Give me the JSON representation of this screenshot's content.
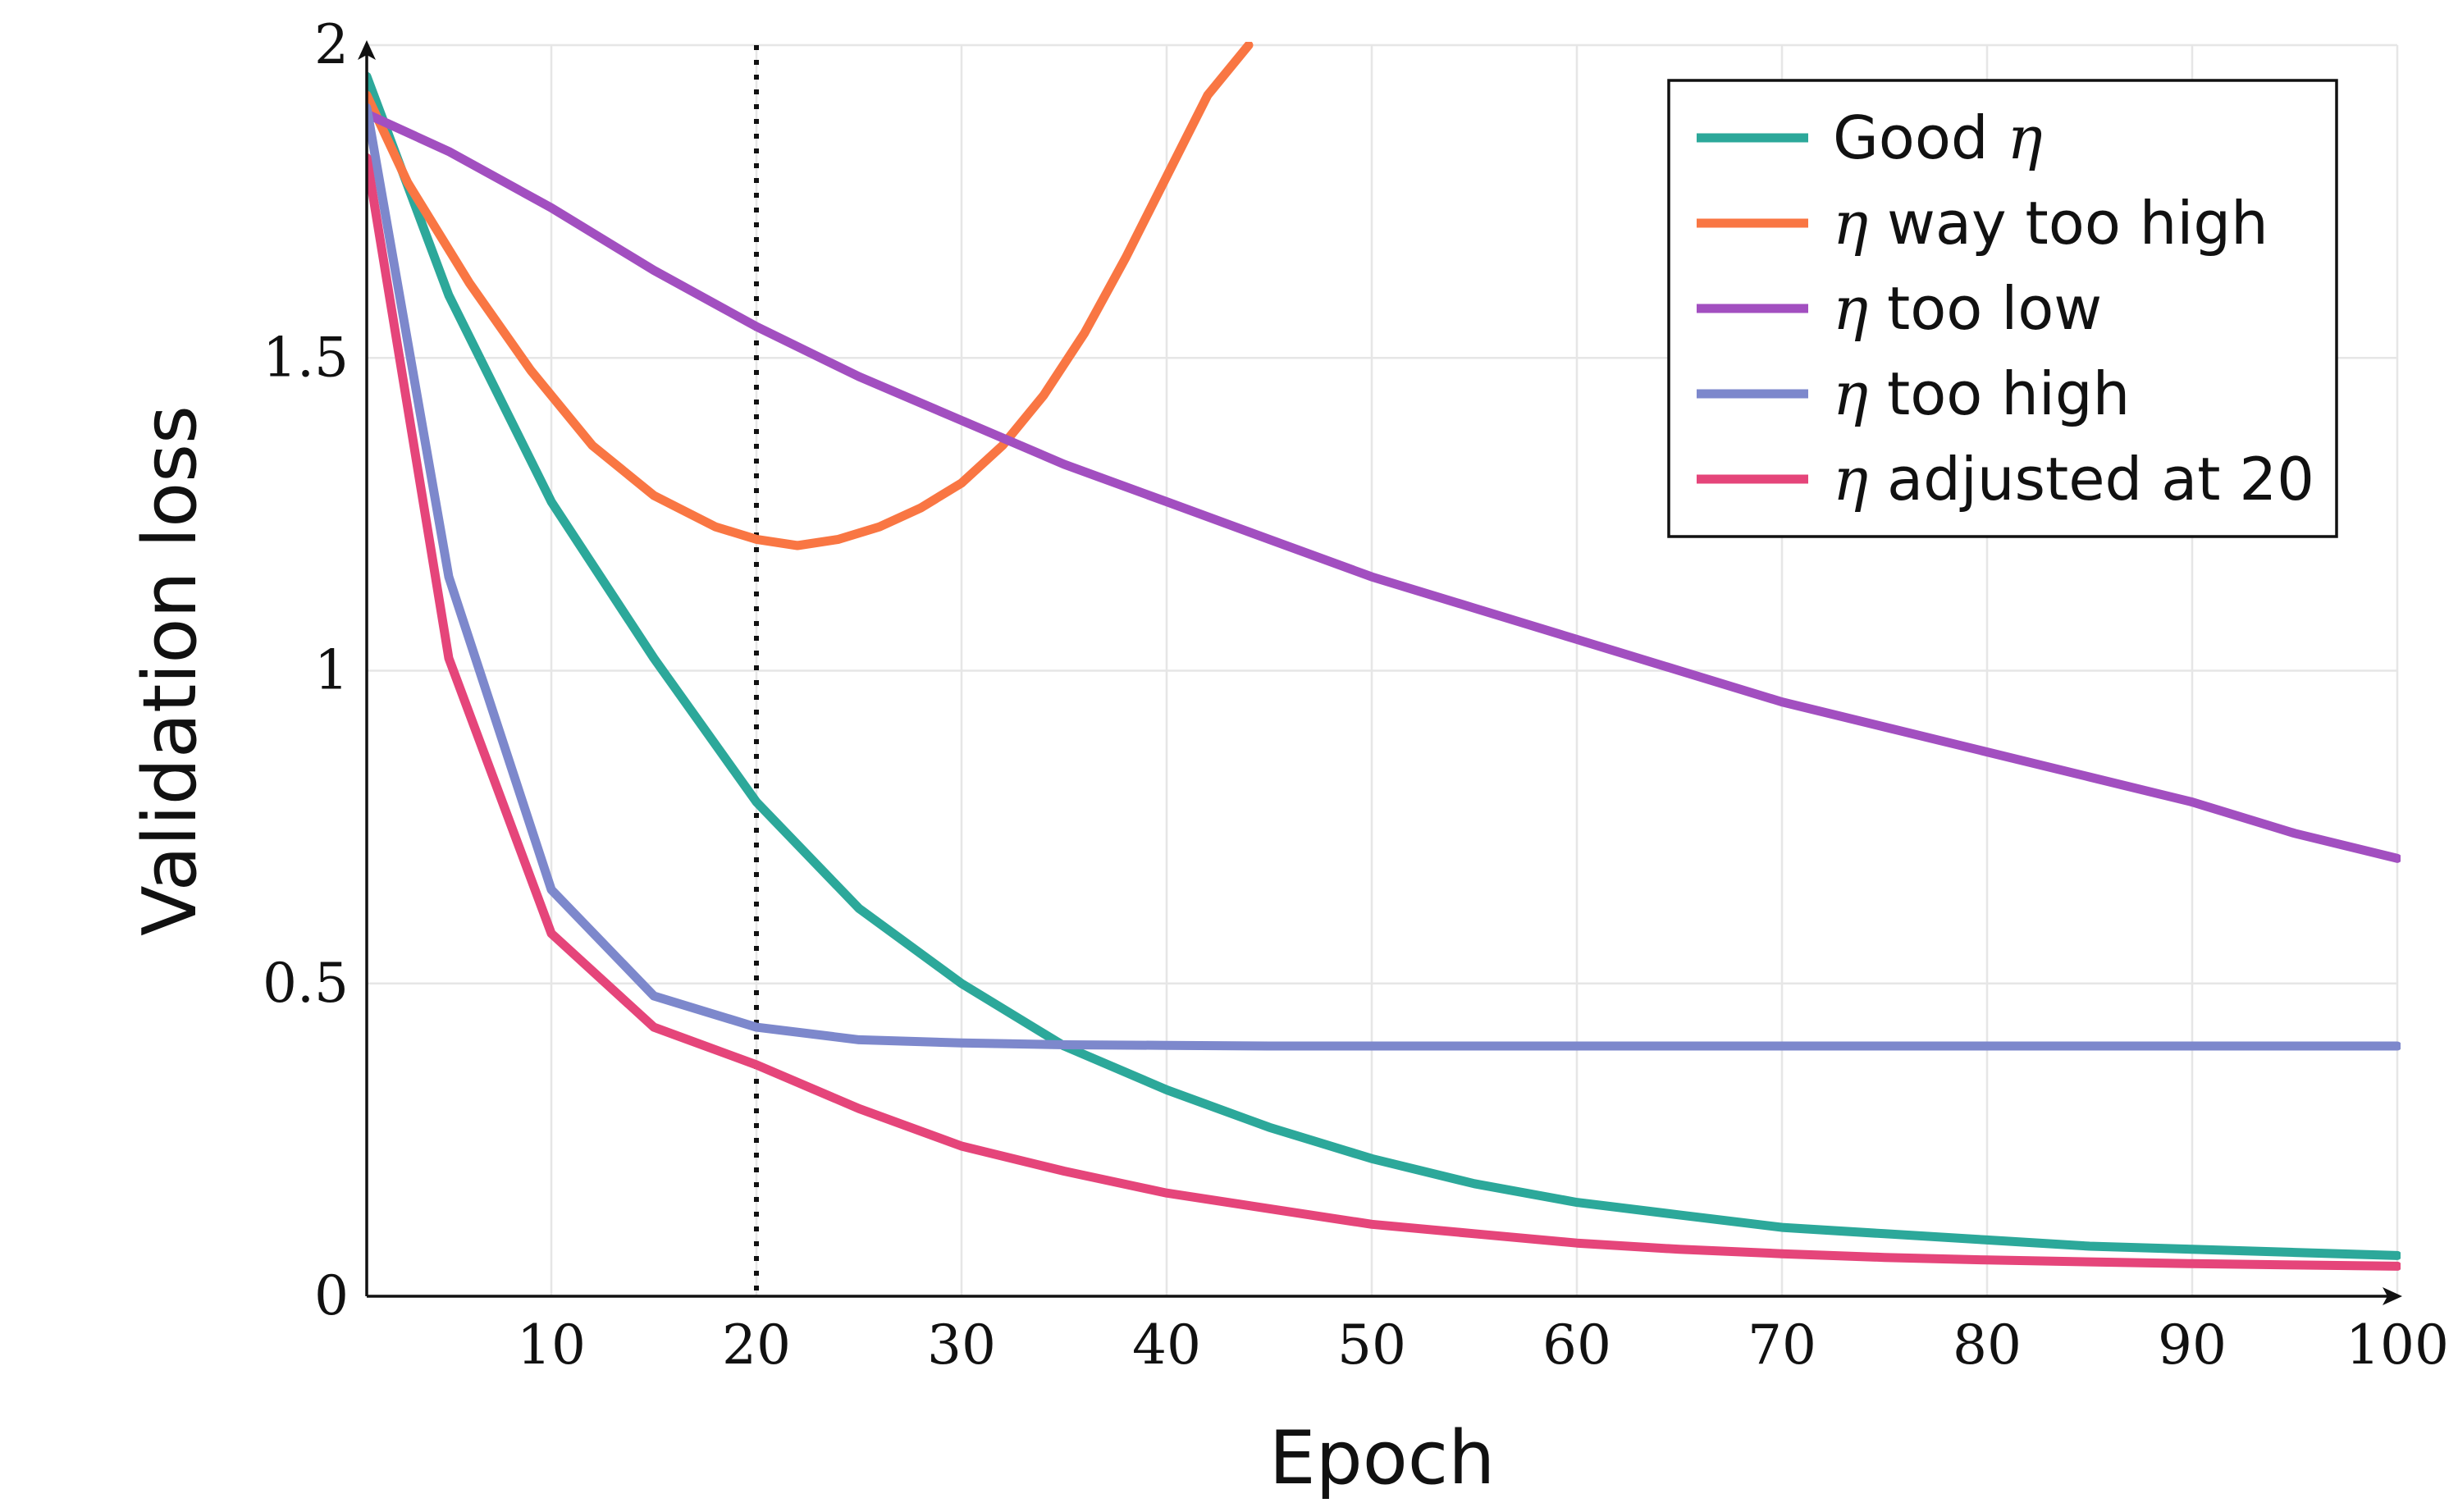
{
  "chart_data": {
    "type": "line",
    "xlabel": "Epoch",
    "ylabel": "Validation loss",
    "xlim": [
      1,
      100
    ],
    "ylim": [
      0,
      2
    ],
    "xticks": [
      "10",
      "20",
      "30",
      "40",
      "50",
      "60",
      "70",
      "80",
      "90",
      "100"
    ],
    "yticks": [
      "0",
      "0.5",
      "1",
      "1.5",
      "2"
    ],
    "grid": true,
    "legend_position": "top-right",
    "vertical_marker_epoch": 20,
    "x": [
      1,
      5,
      10,
      15,
      20,
      25,
      30,
      35,
      40,
      45,
      50,
      55,
      60,
      65,
      70,
      75,
      80,
      85,
      90,
      95,
      100
    ],
    "series": [
      {
        "name_prefix": "Good ",
        "name_suffix": "η",
        "color": "#2ca89a",
        "values": [
          1.95,
          1.6,
          1.27,
          1.02,
          0.79,
          0.62,
          0.5,
          0.4,
          0.33,
          0.27,
          0.22,
          0.18,
          0.15,
          0.13,
          0.11,
          0.1,
          0.09,
          0.08,
          0.075,
          0.07,
          0.065
        ]
      },
      {
        "name_prefix": "η",
        "name_suffix": " way too high",
        "color": "#f97643",
        "x": [
          1,
          3,
          6,
          9,
          12,
          15,
          18,
          20,
          22,
          24,
          26,
          28,
          30,
          32,
          34,
          36,
          38,
          40,
          42,
          44
        ],
        "values": [
          1.92,
          1.78,
          1.62,
          1.48,
          1.36,
          1.28,
          1.23,
          1.21,
          1.2,
          1.21,
          1.23,
          1.26,
          1.3,
          1.36,
          1.44,
          1.54,
          1.66,
          1.79,
          1.92,
          2.0
        ]
      },
      {
        "name_prefix": "η",
        "name_suffix": " too low",
        "color": "#a24fc0",
        "values": [
          1.89,
          1.83,
          1.74,
          1.64,
          1.55,
          1.47,
          1.4,
          1.33,
          1.27,
          1.21,
          1.15,
          1.1,
          1.05,
          1.0,
          0.95,
          0.91,
          0.87,
          0.83,
          0.79,
          0.74,
          0.7
        ]
      },
      {
        "name_prefix": "η",
        "name_suffix": " too high",
        "color": "#7d88cc",
        "values": [
          1.9,
          1.15,
          0.65,
          0.48,
          0.43,
          0.41,
          0.405,
          0.402,
          0.401,
          0.4,
          0.4,
          0.4,
          0.4,
          0.4,
          0.4,
          0.4,
          0.4,
          0.4,
          0.4,
          0.4,
          0.4
        ]
      },
      {
        "name_prefix": "η",
        "name_suffix": " adjusted at 20",
        "color": "#e5457a",
        "values": [
          1.82,
          1.02,
          0.58,
          0.43,
          0.37,
          0.3,
          0.24,
          0.2,
          0.165,
          0.14,
          0.115,
          0.1,
          0.085,
          0.075,
          0.068,
          0.062,
          0.058,
          0.055,
          0.052,
          0.05,
          0.048
        ]
      }
    ]
  }
}
